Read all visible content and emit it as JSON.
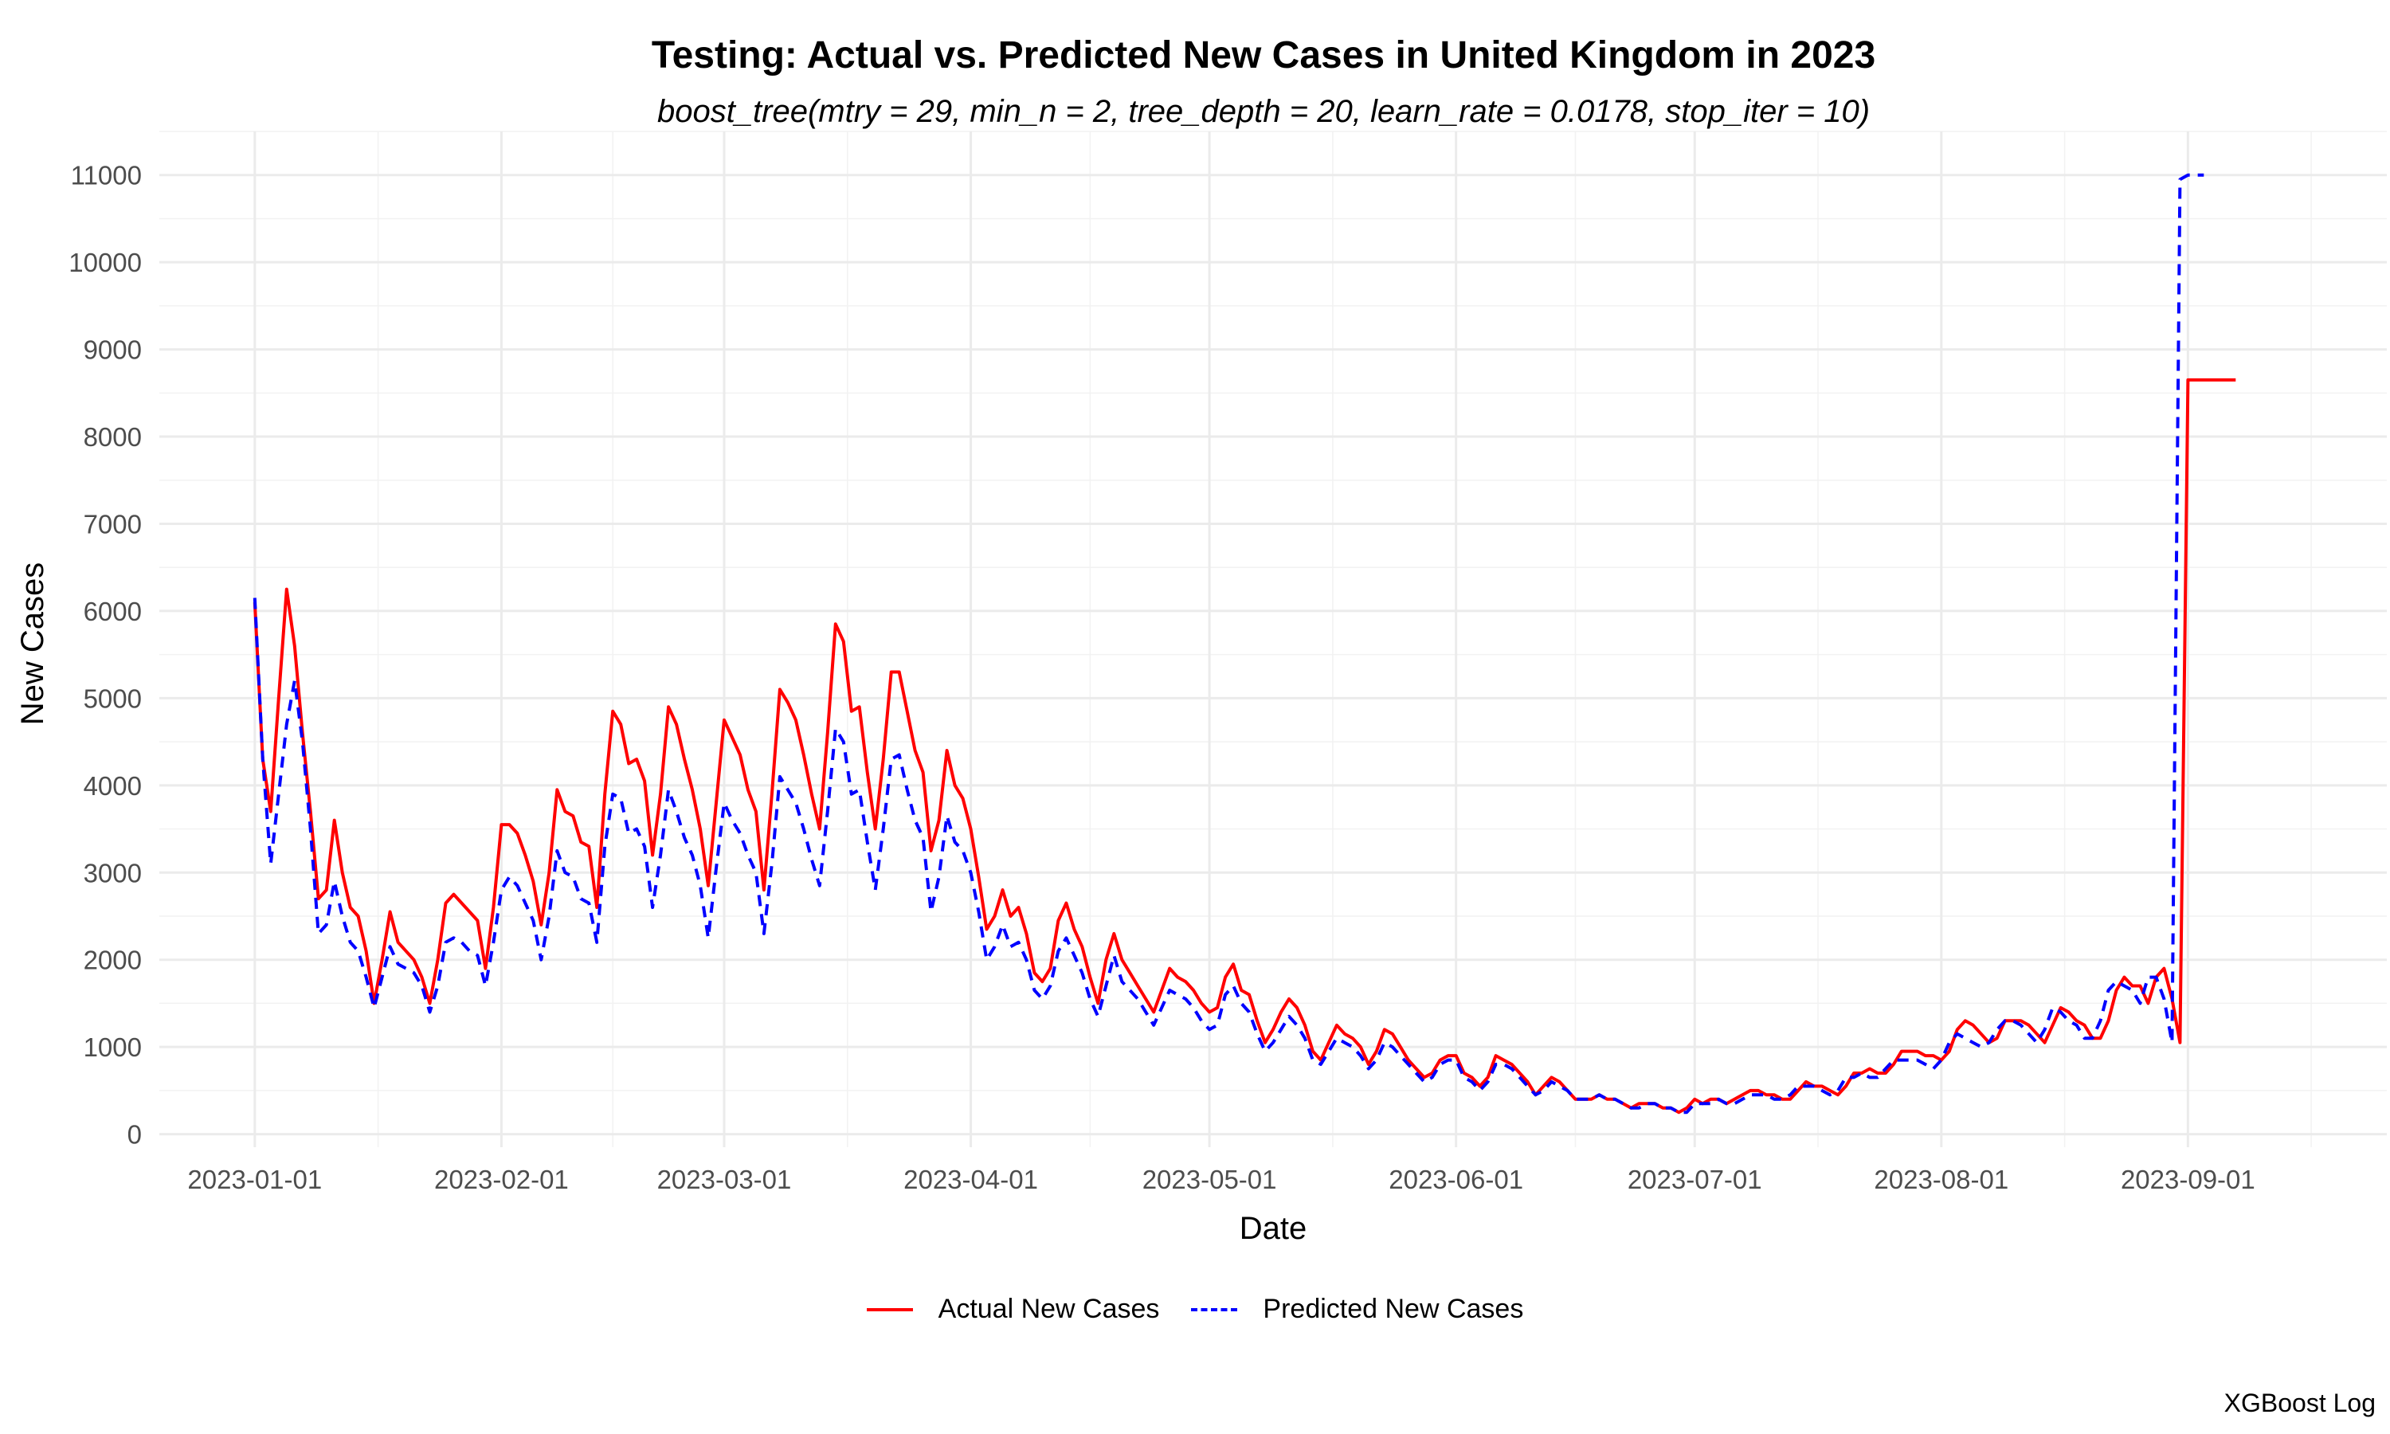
{
  "chart_data": {
    "type": "line",
    "title": "Testing: Actual vs. Predicted New Cases in United Kingdom in 2023",
    "subtitle": "boost_tree(mtry = 29, min_n = 2, tree_depth = 20, learn_rate = 0.0178, stop_iter = 10)",
    "xlabel": "Date",
    "ylabel": "New Cases",
    "caption": "XGBoost Log",
    "x_start": "2023-01-01",
    "x_ticks": [
      "2023-01-01",
      "2023-02-01",
      "2023-03-01",
      "2023-04-01",
      "2023-05-01",
      "2023-06-01",
      "2023-07-01",
      "2023-08-01",
      "2023-09-01"
    ],
    "x_range": [
      "2022-12-20",
      "2023-09-26"
    ],
    "y_ticks": [
      0,
      1000,
      2000,
      3000,
      4000,
      5000,
      6000,
      7000,
      8000,
      9000,
      10000,
      11000
    ],
    "ylim": [
      -150,
      11500
    ],
    "grid": true,
    "legend_position": "bottom",
    "series": [
      {
        "name": "Actual New Cases",
        "color": "#ff0000",
        "dash": "solid",
        "values": [
          6100,
          4300,
          3700,
          5000,
          6250,
          5600,
          4600,
          3700,
          2700,
          2800,
          3600,
          3000,
          2600,
          2500,
          2100,
          1500,
          2000,
          2550,
          2200,
          2100,
          2000,
          1800,
          1500,
          2000,
          2650,
          2750,
          2650,
          2550,
          2450,
          1900,
          2600,
          3550,
          3550,
          3450,
          3200,
          2900,
          2400,
          3000,
          3950,
          3700,
          3650,
          3350,
          3300,
          2600,
          3900,
          4850,
          4700,
          4250,
          4300,
          4050,
          3200,
          3900,
          4900,
          4700,
          4300,
          3950,
          3500,
          2850,
          3800,
          4750,
          4550,
          4350,
          3950,
          3700,
          2800,
          3900,
          5100,
          4950,
          4750,
          4350,
          3900,
          3500,
          4600,
          5850,
          5650,
          4850,
          4900,
          4150,
          3500,
          4300,
          5300,
          5300,
          4850,
          4400,
          4150,
          3250,
          3600,
          4400,
          4000,
          3850,
          3500,
          2950,
          2350,
          2500,
          2800,
          2500,
          2600,
          2300,
          1850,
          1750,
          1900,
          2450,
          2650,
          2350,
          2150,
          1800,
          1500,
          2000,
          2300,
          2000,
          1850,
          1700,
          1550,
          1400,
          1650,
          1900,
          1800,
          1750,
          1650,
          1500,
          1400,
          1450,
          1800,
          1950,
          1650,
          1600,
          1300,
          1050,
          1200,
          1400,
          1550,
          1450,
          1250,
          950,
          850,
          1050,
          1250,
          1150,
          1100,
          1000,
          800,
          950,
          1200,
          1150,
          1000,
          850,
          750,
          650,
          700,
          850,
          900,
          900,
          700,
          650,
          550,
          650,
          900,
          850,
          800,
          700,
          600,
          450,
          550,
          650,
          600,
          500,
          400,
          400,
          400,
          450,
          400,
          400,
          350,
          300,
          350,
          350,
          350,
          300,
          300,
          250,
          300,
          400,
          350,
          400,
          400,
          350,
          400,
          450,
          500,
          500,
          450,
          450,
          400,
          400,
          500,
          600,
          550,
          550,
          500,
          450,
          550,
          700,
          700,
          750,
          700,
          700,
          800,
          950,
          950,
          950,
          900,
          900,
          850,
          950,
          1200,
          1300,
          1250,
          1150,
          1050,
          1100,
          1300,
          1300,
          1300,
          1250,
          1150,
          1050,
          1250,
          1450,
          1400,
          1300,
          1250,
          1100,
          1100,
          1300,
          1650,
          1800,
          1700,
          1700,
          1500,
          1800,
          1900,
          1550,
          1050,
          8650,
          8650,
          8650,
          8650,
          8650,
          8650,
          8650
        ]
      },
      {
        "name": "Predicted New Cases",
        "color": "#0000ff",
        "dash": "dashed",
        "values": [
          6150,
          4300,
          3100,
          3900,
          4700,
          5200,
          4500,
          3500,
          2300,
          2400,
          2900,
          2500,
          2200,
          2100,
          1800,
          1450,
          1800,
          2150,
          1950,
          1900,
          1850,
          1700,
          1400,
          1700,
          2200,
          2250,
          2200,
          2100,
          2050,
          1700,
          2200,
          2800,
          2950,
          2850,
          2650,
          2450,
          2000,
          2500,
          3250,
          3000,
          2950,
          2700,
          2650,
          2200,
          3300,
          3900,
          3850,
          3450,
          3500,
          3300,
          2600,
          3200,
          3950,
          3700,
          3400,
          3200,
          2850,
          2250,
          3050,
          3800,
          3600,
          3450,
          3200,
          3000,
          2300,
          3100,
          4100,
          3950,
          3800,
          3500,
          3150,
          2850,
          3700,
          4650,
          4500,
          3900,
          3950,
          3350,
          2800,
          3500,
          4300,
          4350,
          3950,
          3600,
          3400,
          2550,
          2950,
          3650,
          3350,
          3250,
          3000,
          2550,
          2000,
          2150,
          2400,
          2150,
          2200,
          2000,
          1650,
          1550,
          1700,
          2100,
          2250,
          2050,
          1850,
          1550,
          1350,
          1700,
          2050,
          1750,
          1650,
          1550,
          1400,
          1250,
          1450,
          1650,
          1600,
          1550,
          1450,
          1300,
          1200,
          1250,
          1600,
          1700,
          1500,
          1400,
          1150,
          950,
          1050,
          1200,
          1350,
          1250,
          1100,
          850,
          800,
          950,
          1100,
          1050,
          1000,
          900,
          750,
          850,
          1050,
          1000,
          900,
          800,
          700,
          600,
          650,
          800,
          850,
          850,
          650,
          600,
          500,
          600,
          800,
          800,
          750,
          650,
          550,
          450,
          500,
          600,
          550,
          500,
          400,
          400,
          400,
          450,
          400,
          400,
          350,
          300,
          300,
          350,
          350,
          300,
          300,
          250,
          250,
          350,
          350,
          350,
          400,
          350,
          350,
          400,
          450,
          450,
          450,
          400,
          400,
          450,
          550,
          550,
          550,
          500,
          450,
          500,
          650,
          650,
          700,
          650,
          650,
          750,
          850,
          850,
          850,
          850,
          800,
          750,
          850,
          1050,
          1150,
          1100,
          1050,
          1000,
          1050,
          1200,
          1300,
          1300,
          1250,
          1150,
          1050,
          1200,
          1450,
          1400,
          1300,
          1250,
          1100,
          1100,
          1300,
          1650,
          1750,
          1700,
          1650,
          1500,
          1800,
          1800,
          1550,
          1050,
          10950,
          11000,
          11000,
          11000
        ]
      }
    ]
  }
}
